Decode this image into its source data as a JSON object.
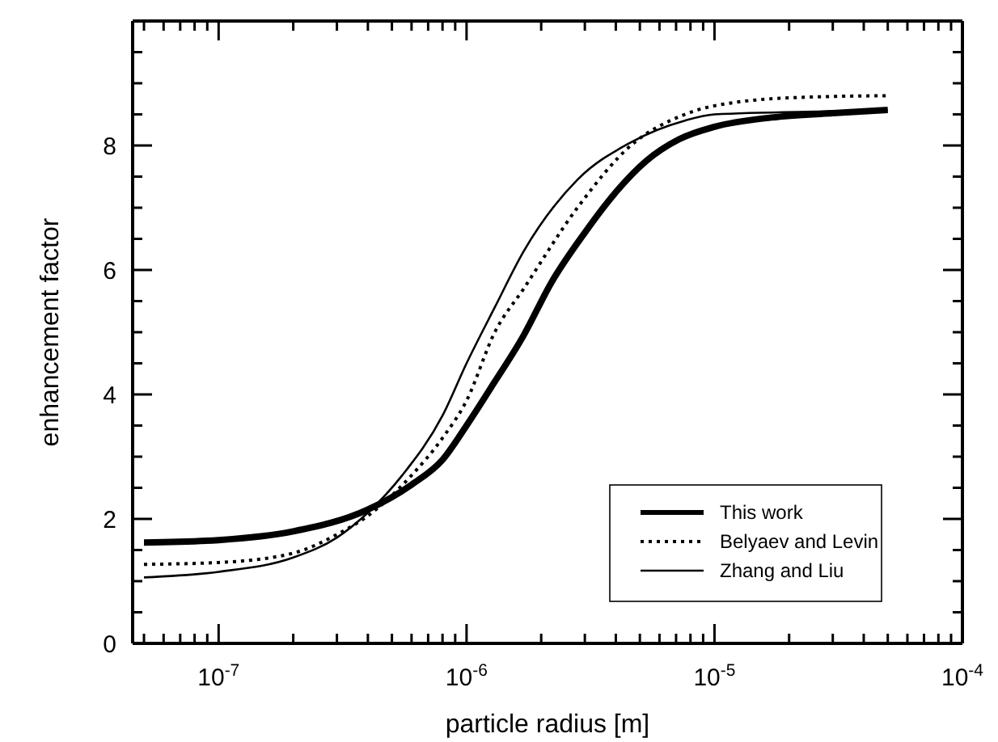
{
  "chart_data": {
    "type": "line",
    "xlabel": "particle radius [m]",
    "ylabel": "enhancement factor",
    "log": "x",
    "grid": false,
    "legend": "bottom right",
    "marker": "none",
    "xlim": [
      4.5e-08,
      0.0001
    ],
    "ylim": [
      0,
      10
    ],
    "xticks": [
      {
        "value": 5e-08,
        "label": null
      },
      {
        "value": 6e-08,
        "label": null
      },
      {
        "value": 7e-08,
        "label": null
      },
      {
        "value": 8e-08,
        "label": null
      },
      {
        "value": 9e-08,
        "label": null
      },
      {
        "value": 1e-07,
        "label": "10$^{-7}$"
      },
      {
        "value": 2e-07,
        "label": null
      },
      {
        "value": 3e-07,
        "label": null
      },
      {
        "value": 4e-07,
        "label": null
      },
      {
        "value": 5e-07,
        "label": null
      },
      {
        "value": 6e-07,
        "label": null
      },
      {
        "value": 7e-07,
        "label": null
      },
      {
        "value": 8e-07,
        "label": null
      },
      {
        "value": 9e-07,
        "label": null
      },
      {
        "value": 1e-06,
        "label": "10$^{-6}$"
      },
      {
        "value": 2e-06,
        "label": null
      },
      {
        "value": 3e-06,
        "label": null
      },
      {
        "value": 4e-06,
        "label": null
      },
      {
        "value": 5e-06,
        "label": null
      },
      {
        "value": 6e-06,
        "label": null
      },
      {
        "value": 7e-06,
        "label": null
      },
      {
        "value": 8e-06,
        "label": null
      },
      {
        "value": 9e-06,
        "label": null
      },
      {
        "value": 1e-05,
        "label": "10$^{-5}$"
      },
      {
        "value": 2e-05,
        "label": null
      },
      {
        "value": 3e-05,
        "label": null
      },
      {
        "value": 4e-05,
        "label": null
      },
      {
        "value": 5e-05,
        "label": null
      },
      {
        "value": 6e-05,
        "label": null
      },
      {
        "value": 7e-05,
        "label": null
      },
      {
        "value": 8e-05,
        "label": null
      },
      {
        "value": 9e-05,
        "label": null
      },
      {
        "value": 0.0001,
        "label": "10$^{-4}$"
      }
    ],
    "yticks": [
      0,
      {
        "value": 0.5,
        "label": null
      },
      {
        "value": 1,
        "label": null
      },
      {
        "value": 1.5,
        "label": null
      },
      2,
      {
        "value": 2.5,
        "label": null
      },
      {
        "value": 3,
        "label": null
      },
      {
        "value": 3.5,
        "label": null
      },
      4,
      {
        "value": 4.5,
        "label": null
      },
      {
        "value": 5,
        "label": null
      },
      {
        "value": 5.5,
        "label": null
      },
      6,
      {
        "value": 6.5,
        "label": null
      },
      {
        "value": 7,
        "label": null
      },
      {
        "value": 7.5,
        "label": null
      },
      8,
      {
        "value": 8.5,
        "label": null
      },
      {
        "value": 9,
        "label": null
      },
      {
        "value": 9.5,
        "label": null
      }
    ],
    "series": [
      {
        "name": "This work",
        "color": "#000000",
        "line_style": "solid",
        "x": [
          5e-08,
          1e-07,
          2e-07,
          4e-07,
          6e-07,
          8e-07,
          1e-06,
          1.25e-06,
          1.7e-06,
          2.2e-06,
          3e-06,
          4e-06,
          5.3e-06,
          7.2e-06,
          1e-05,
          1.7e-05,
          3e-05,
          5e-05
        ],
        "values": [
          1.62,
          1.66,
          1.8,
          2.15,
          2.55,
          2.95,
          3.5,
          4.1,
          4.95,
          5.8,
          6.6,
          7.25,
          7.75,
          8.1,
          8.3,
          8.45,
          8.52,
          8.57
        ]
      },
      {
        "name": "Belyaev and Levin",
        "color": "#000000",
        "line_style": "dotted",
        "x": [
          5e-08,
          1e-07,
          2e-07,
          3e-07,
          4e-07,
          6e-07,
          8e-07,
          1e-06,
          1.3e-06,
          1.7e-06,
          2.8e-06,
          4.6e-06,
          7.6e-06,
          1.25e-05,
          2.5e-05,
          5e-05
        ],
        "values": [
          1.27,
          1.3,
          1.45,
          1.75,
          2.05,
          2.7,
          3.3,
          3.9,
          5.0,
          5.7,
          7.0,
          8.0,
          8.5,
          8.7,
          8.78,
          8.8
        ]
      },
      {
        "name": "Zhang and Liu",
        "color": "#000000",
        "line_style": "solid",
        "x": [
          5e-08,
          1e-07,
          2e-07,
          3e-07,
          4e-07,
          5.5e-07,
          8e-07,
          1e-06,
          1.3e-06,
          1.7e-06,
          2.8e-06,
          4.6e-06,
          7.6e-06,
          1e-05,
          3e-05,
          5e-05
        ],
        "values": [
          1.06,
          1.15,
          1.38,
          1.7,
          2.1,
          2.7,
          3.66,
          4.5,
          5.4,
          6.3,
          7.45,
          8.05,
          8.4,
          8.5,
          8.55,
          8.57
        ]
      }
    ]
  }
}
